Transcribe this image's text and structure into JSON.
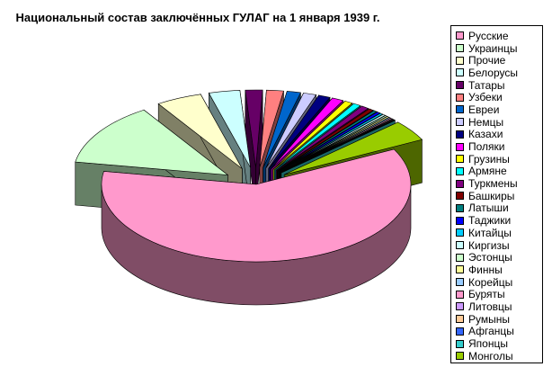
{
  "chart_data": {
    "type": "pie",
    "title": "Национальный состав заключённых ГУЛАГ на 1 января 1939 г.",
    "legend_position": "right",
    "three_d": true,
    "exploded": true,
    "series": [
      {
        "name": "Русские",
        "value": 830491,
        "color": "#ff99cc"
      },
      {
        "name": "Украинцы",
        "value": 181905,
        "color": "#ccffcc"
      },
      {
        "name": "Прочие",
        "value": 66000,
        "color": "#ffffcc"
      },
      {
        "name": "Белорусы",
        "value": 44785,
        "color": "#ccffff"
      },
      {
        "name": "Татары",
        "value": 24720,
        "color": "#660066"
      },
      {
        "name": "Узбеки",
        "value": 24499,
        "color": "#ff8080"
      },
      {
        "name": "Евреи",
        "value": 19758,
        "color": "#0066cc"
      },
      {
        "name": "Немцы",
        "value": 18572,
        "color": "#ccccff"
      },
      {
        "name": "Казахи",
        "value": 17123,
        "color": "#000080"
      },
      {
        "name": "Поляки",
        "value": 16860,
        "color": "#ff00ff"
      },
      {
        "name": "Грузины",
        "value": 11723,
        "color": "#ffff00"
      },
      {
        "name": "Армяне",
        "value": 11064,
        "color": "#00ffff"
      },
      {
        "name": "Туркмены",
        "value": 11111,
        "color": "#800080"
      },
      {
        "name": "Башкиры",
        "value": 7000,
        "color": "#800000"
      },
      {
        "name": "Латыши",
        "value": 5000,
        "color": "#008080"
      },
      {
        "name": "Таджики",
        "value": 5000,
        "color": "#0000ff"
      },
      {
        "name": "Китайцы",
        "value": 4000,
        "color": "#00ccff"
      },
      {
        "name": "Киргизы",
        "value": 4000,
        "color": "#ccffff"
      },
      {
        "name": "Эстонцы",
        "value": 3000,
        "color": "#ccffcc"
      },
      {
        "name": "Финны",
        "value": 3000,
        "color": "#ffff99"
      },
      {
        "name": "Корейцы",
        "value": 2500,
        "color": "#99ccff"
      },
      {
        "name": "Буряты",
        "value": 2500,
        "color": "#ff99cc"
      },
      {
        "name": "Литовцы",
        "value": 1500,
        "color": "#cc99ff"
      },
      {
        "name": "Румыны",
        "value": 1500,
        "color": "#ffcc99"
      },
      {
        "name": "Афганцы",
        "value": 1000,
        "color": "#3366ff"
      },
      {
        "name": "Японцы",
        "value": 1000,
        "color": "#33cccc"
      },
      {
        "name": "Монголы",
        "value": 60000,
        "color": "#99cc00"
      }
    ]
  }
}
